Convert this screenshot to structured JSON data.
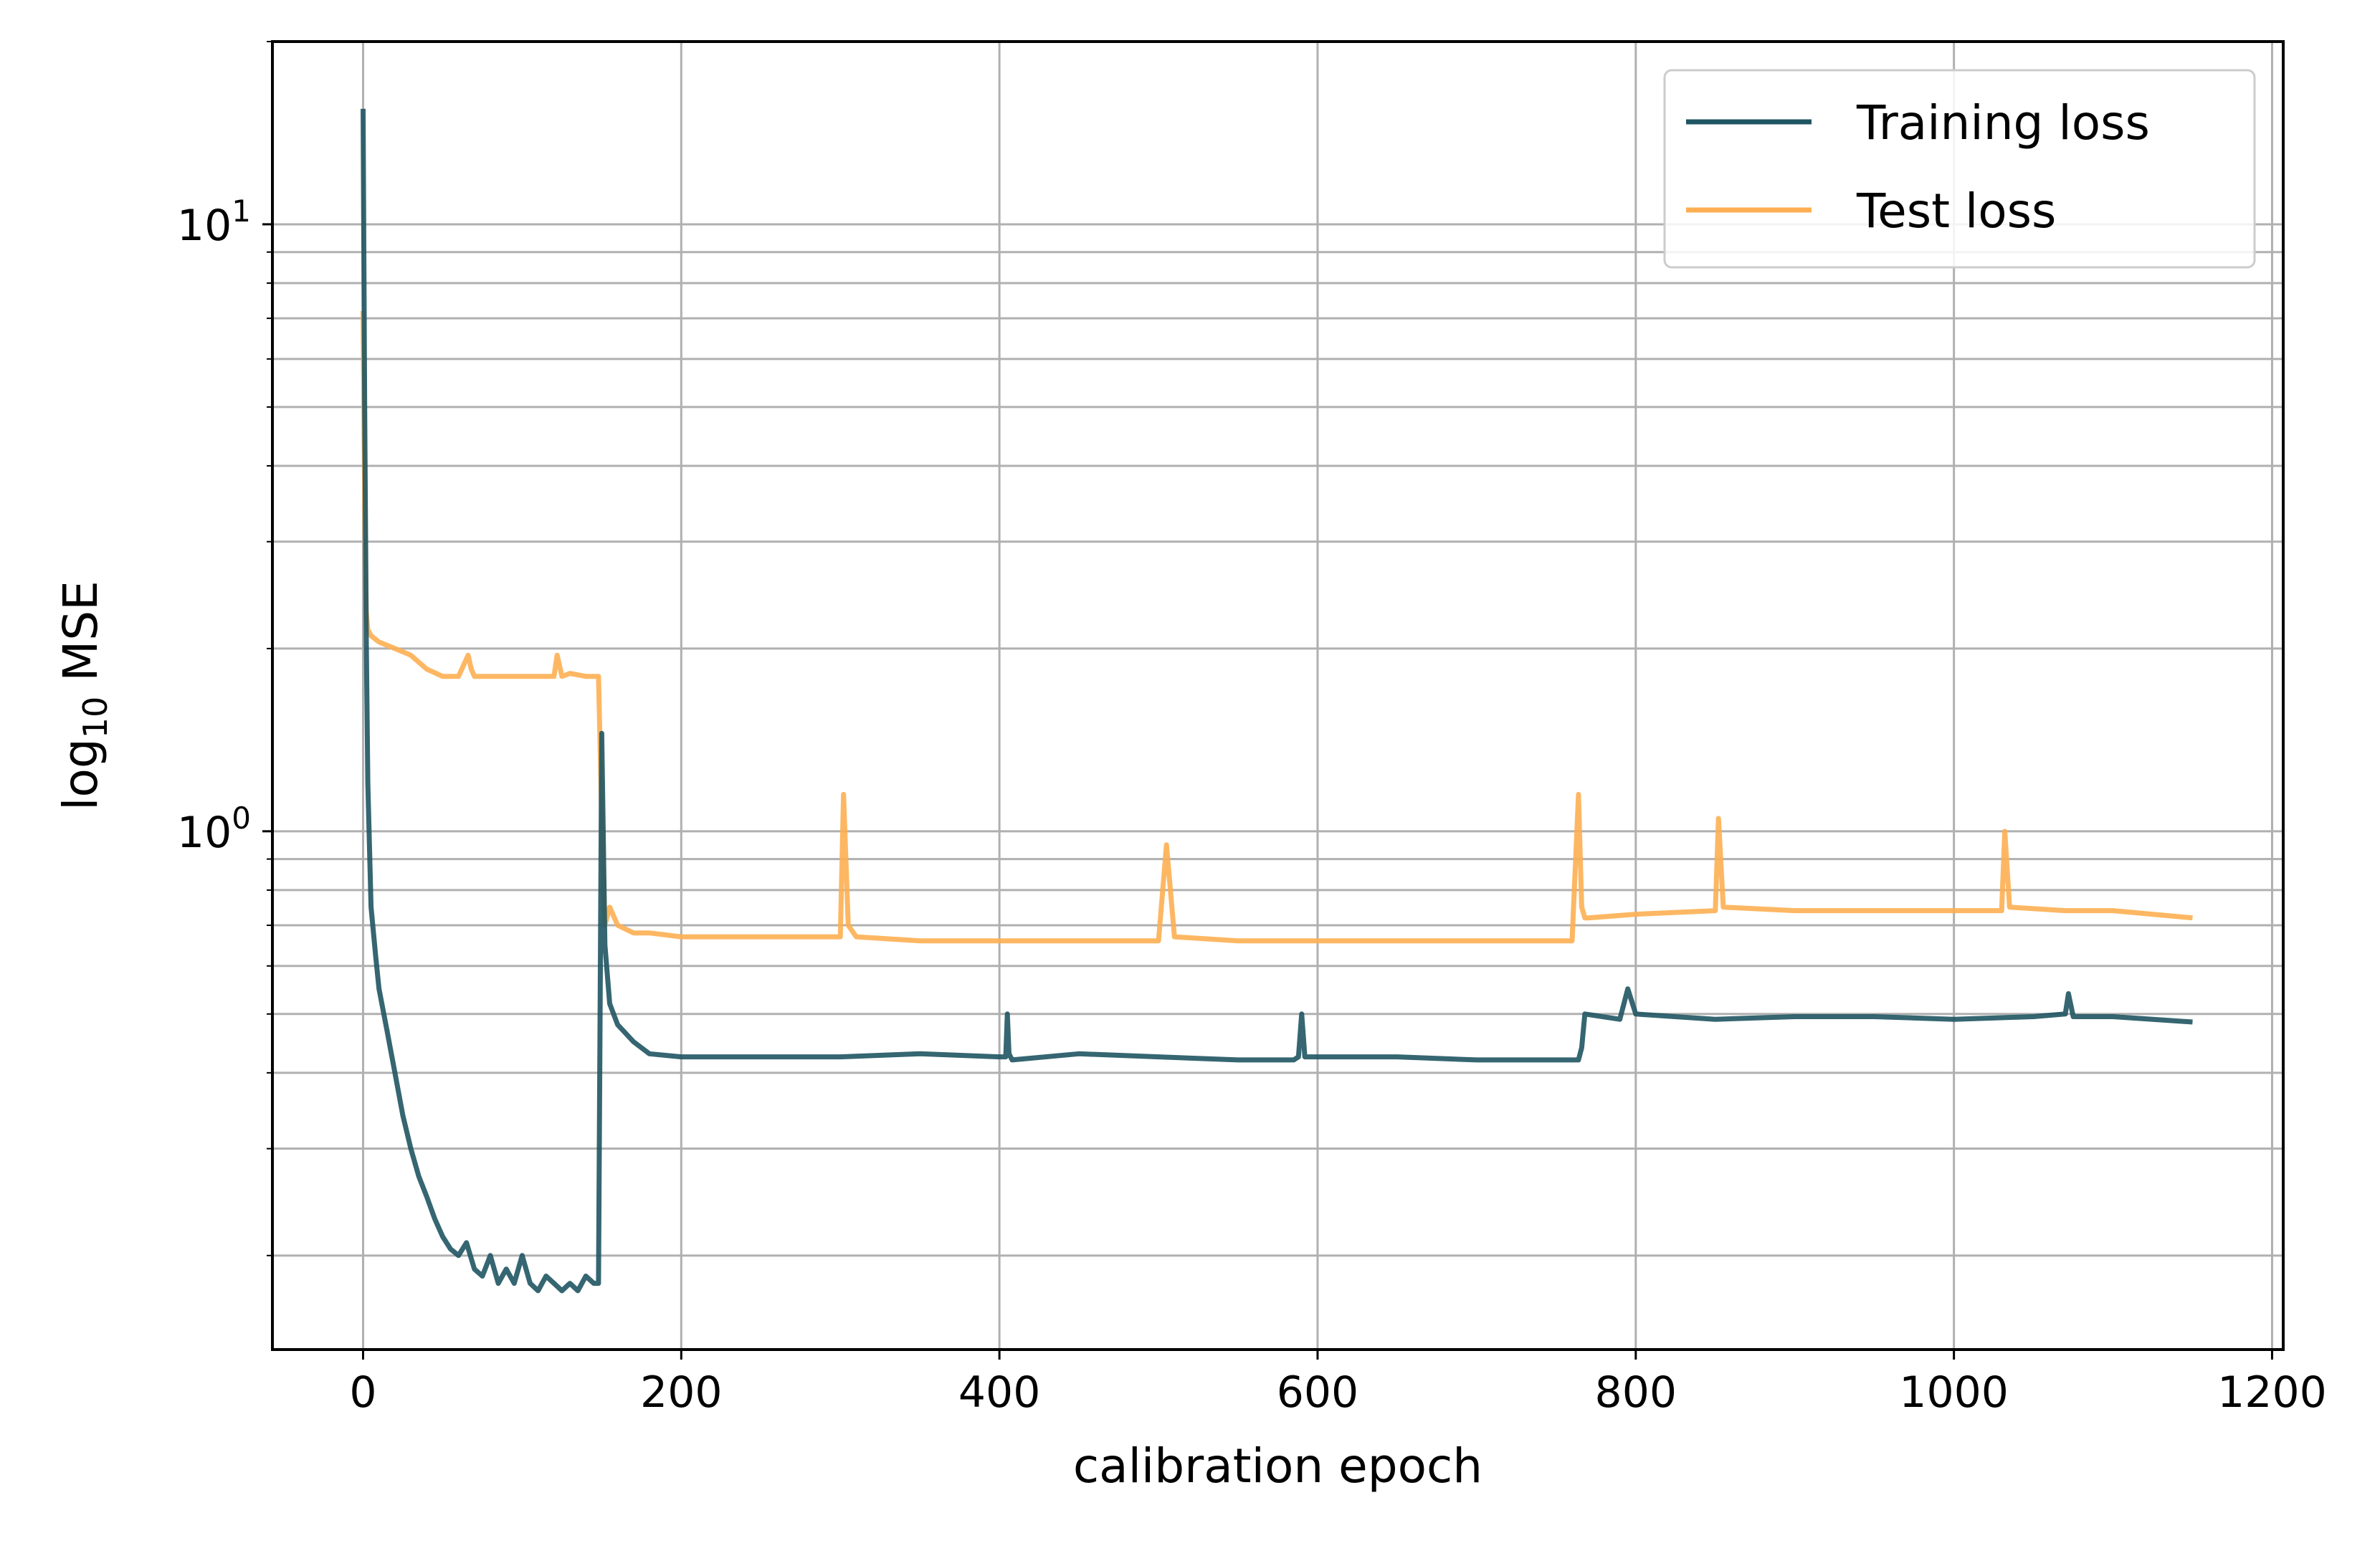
{
  "chart_data": {
    "type": "line",
    "title": "",
    "xlabel": "calibration epoch",
    "ylabel": {
      "base": "log",
      "sub": "10",
      "rest": " MSE"
    },
    "xlim": [
      -57,
      1207
    ],
    "ylim": [
      0.14,
      20
    ],
    "yscale": "log",
    "grid": true,
    "legend_position": "upper right",
    "x_ticks": [
      {
        "value": 0,
        "label": "0"
      },
      {
        "value": 200,
        "label": "200"
      },
      {
        "value": 400,
        "label": "400"
      },
      {
        "value": 600,
        "label": "600"
      },
      {
        "value": 800,
        "label": "800"
      },
      {
        "value": 1000,
        "label": "1000"
      },
      {
        "value": 1200,
        "label": "1200"
      }
    ],
    "y_ticks": [
      {
        "value": 1,
        "base": "10",
        "exp": "0"
      },
      {
        "value": 10,
        "base": "10",
        "exp": "1"
      }
    ],
    "series": [
      {
        "name": "Training loss",
        "color": "#1f5562",
        "x": [
          0,
          1,
          2,
          3,
          5,
          8,
          10,
          15,
          20,
          25,
          30,
          35,
          40,
          45,
          50,
          55,
          60,
          65,
          70,
          75,
          80,
          85,
          90,
          95,
          100,
          105,
          110,
          115,
          120,
          125,
          130,
          135,
          140,
          145,
          148,
          150,
          152,
          155,
          160,
          170,
          180,
          200,
          250,
          300,
          350,
          400,
          404,
          405,
          406,
          408,
          450,
          500,
          550,
          585,
          588,
          590,
          592,
          650,
          700,
          750,
          764,
          766,
          768,
          790,
          795,
          800,
          850,
          900,
          950,
          1000,
          1050,
          1070,
          1072,
          1075,
          1100,
          1150
        ],
        "values": [
          15.5,
          5.0,
          2.1,
          1.2,
          0.75,
          0.62,
          0.55,
          0.47,
          0.4,
          0.34,
          0.3,
          0.27,
          0.25,
          0.23,
          0.215,
          0.205,
          0.2,
          0.21,
          0.19,
          0.185,
          0.2,
          0.18,
          0.19,
          0.18,
          0.2,
          0.18,
          0.175,
          0.185,
          0.18,
          0.175,
          0.18,
          0.175,
          0.185,
          0.18,
          0.18,
          1.45,
          0.65,
          0.52,
          0.48,
          0.45,
          0.43,
          0.425,
          0.425,
          0.425,
          0.43,
          0.425,
          0.425,
          0.5,
          0.43,
          0.42,
          0.43,
          0.425,
          0.42,
          0.42,
          0.425,
          0.5,
          0.425,
          0.425,
          0.42,
          0.42,
          0.42,
          0.44,
          0.5,
          0.49,
          0.55,
          0.5,
          0.49,
          0.495,
          0.495,
          0.49,
          0.495,
          0.5,
          0.54,
          0.495,
          0.495,
          0.485
        ]
      },
      {
        "name": "Test loss",
        "color": "#fdaf52",
        "x": [
          0,
          1,
          2,
          3,
          5,
          10,
          20,
          30,
          40,
          50,
          60,
          66,
          68,
          70,
          80,
          90,
          100,
          110,
          120,
          122,
          125,
          130,
          140,
          148,
          150,
          152,
          155,
          160,
          170,
          180,
          200,
          250,
          300,
          302,
          305,
          310,
          350,
          400,
          450,
          500,
          505,
          510,
          550,
          600,
          650,
          700,
          760,
          764,
          766,
          768,
          770,
          800,
          850,
          852,
          855,
          900,
          950,
          1000,
          1030,
          1032,
          1035,
          1070,
          1100,
          1150
        ],
        "values": [
          7.2,
          3.5,
          2.3,
          2.15,
          2.1,
          2.05,
          2.0,
          1.95,
          1.85,
          1.8,
          1.8,
          1.95,
          1.85,
          1.8,
          1.8,
          1.8,
          1.8,
          1.8,
          1.8,
          1.95,
          1.8,
          1.82,
          1.8,
          1.8,
          1.05,
          0.7,
          0.75,
          0.7,
          0.68,
          0.68,
          0.67,
          0.67,
          0.67,
          1.15,
          0.7,
          0.67,
          0.66,
          0.66,
          0.66,
          0.66,
          0.95,
          0.67,
          0.66,
          0.66,
          0.66,
          0.66,
          0.66,
          1.15,
          0.75,
          0.72,
          0.72,
          0.73,
          0.74,
          1.05,
          0.75,
          0.74,
          0.74,
          0.74,
          0.74,
          1.0,
          0.75,
          0.74,
          0.74,
          0.72
        ]
      }
    ]
  }
}
